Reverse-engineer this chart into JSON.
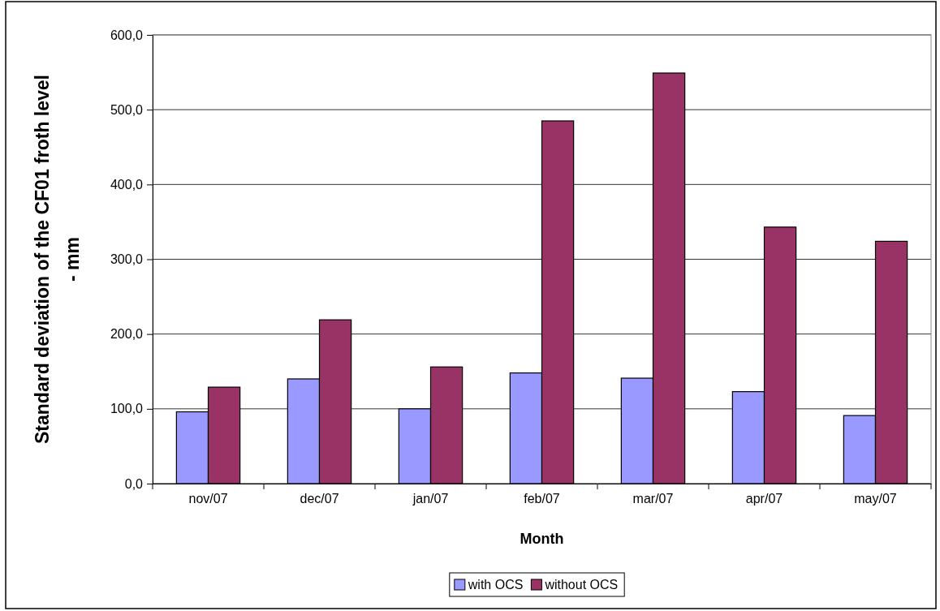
{
  "chart_data": {
    "type": "bar",
    "xlabel": "Month",
    "ylabel": "Standard deviation of the CF01 froth level - mm",
    "categories": [
      "nov/07",
      "dec/07",
      "jan/07",
      "feb/07",
      "mar/07",
      "apr/07",
      "may/07"
    ],
    "series": [
      {
        "name": "with OCS",
        "color": "#9999ff",
        "values": [
          96,
          140,
          100,
          148,
          141,
          123,
          91
        ]
      },
      {
        "name": "without OCS",
        "color": "#993366",
        "values": [
          129,
          219,
          156,
          485,
          549,
          343,
          324
        ]
      }
    ],
    "ylim": [
      0,
      600
    ],
    "yticks": [
      {
        "value": 0,
        "label": "0,0"
      },
      {
        "value": 100,
        "label": "100,0"
      },
      {
        "value": 200,
        "label": "200,0"
      },
      {
        "value": 300,
        "label": "300,0"
      },
      {
        "value": 400,
        "label": "400,0"
      },
      {
        "value": 500,
        "label": "500,0"
      },
      {
        "value": 600,
        "label": "600,0"
      }
    ],
    "grid": "y",
    "legend": "bottom"
  }
}
